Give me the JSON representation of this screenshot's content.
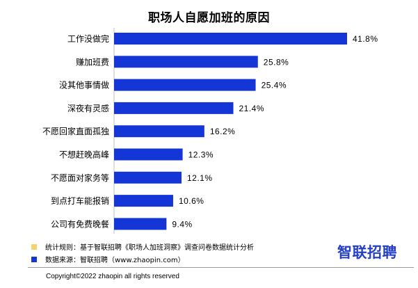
{
  "chart_data": {
    "type": "bar",
    "orientation": "horizontal",
    "title": "职场人自愿加班的原因",
    "categories": [
      "工作没做完",
      "赚加班费",
      "没其他事情做",
      "深夜有灵感",
      "不愿回家直面孤独",
      "不想赶晚高峰",
      "不愿面对家务等",
      "到点打车能报销",
      "公司有免费晚餐"
    ],
    "values": [
      41.8,
      25.8,
      25.4,
      21.4,
      16.2,
      12.3,
      12.1,
      10.6,
      9.4
    ],
    "value_labels": [
      "41.8%",
      "25.8%",
      "25.4%",
      "21.4%",
      "16.2%",
      "12.3%",
      "12.1%",
      "10.6%",
      "9.4%"
    ],
    "xlim": [
      0,
      41.8
    ],
    "grid": false,
    "bar_color": "#1436d6"
  },
  "notes": [
    {
      "text": "统计规则：基于智联招聘《职场人加班洞察》调查问卷数据统计分析",
      "color": "#f5d26a"
    },
    {
      "text": "数据来源：智联招聘（www.zhaopin.com）",
      "color": "#1436d6"
    }
  ],
  "brand": {
    "logo_text": "智联招聘"
  },
  "footer": {
    "copyright": "Copyright©2022 zhaopin all rights reserved"
  }
}
